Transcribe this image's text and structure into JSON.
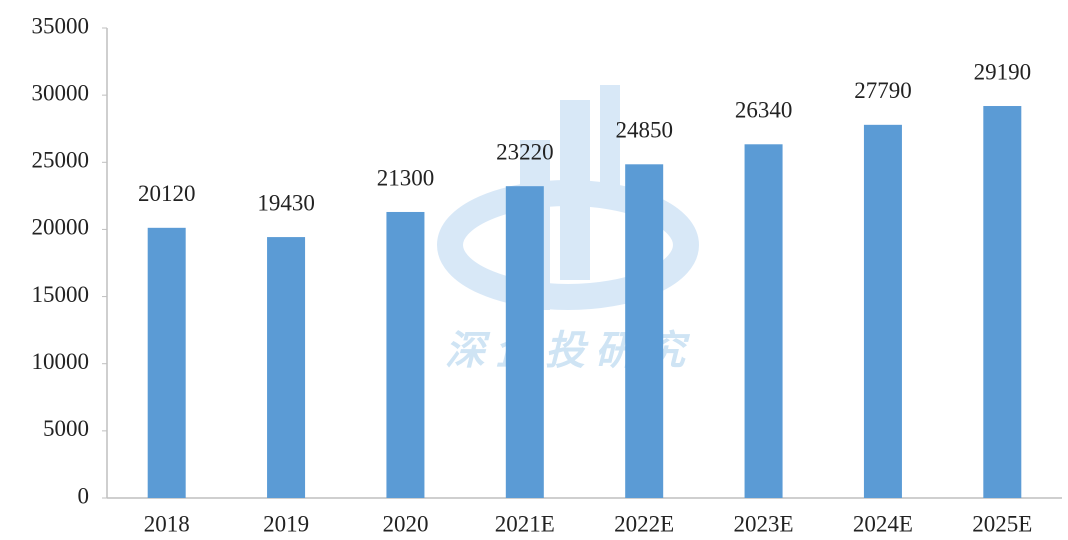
{
  "chart_data": {
    "type": "bar",
    "categories": [
      "2018",
      "2019",
      "2020",
      "2021E",
      "2022E",
      "2023E",
      "2024E",
      "2025E"
    ],
    "values": [
      20120,
      19430,
      21300,
      23220,
      24850,
      26340,
      27790,
      29190
    ],
    "color": "#5b9bd5",
    "ylim": [
      0,
      35000
    ],
    "yticks": [
      0,
      5000,
      10000,
      15000,
      20000,
      25000,
      30000,
      35000
    ],
    "grid": false,
    "data_labels": true,
    "watermark": "深企投研究"
  }
}
